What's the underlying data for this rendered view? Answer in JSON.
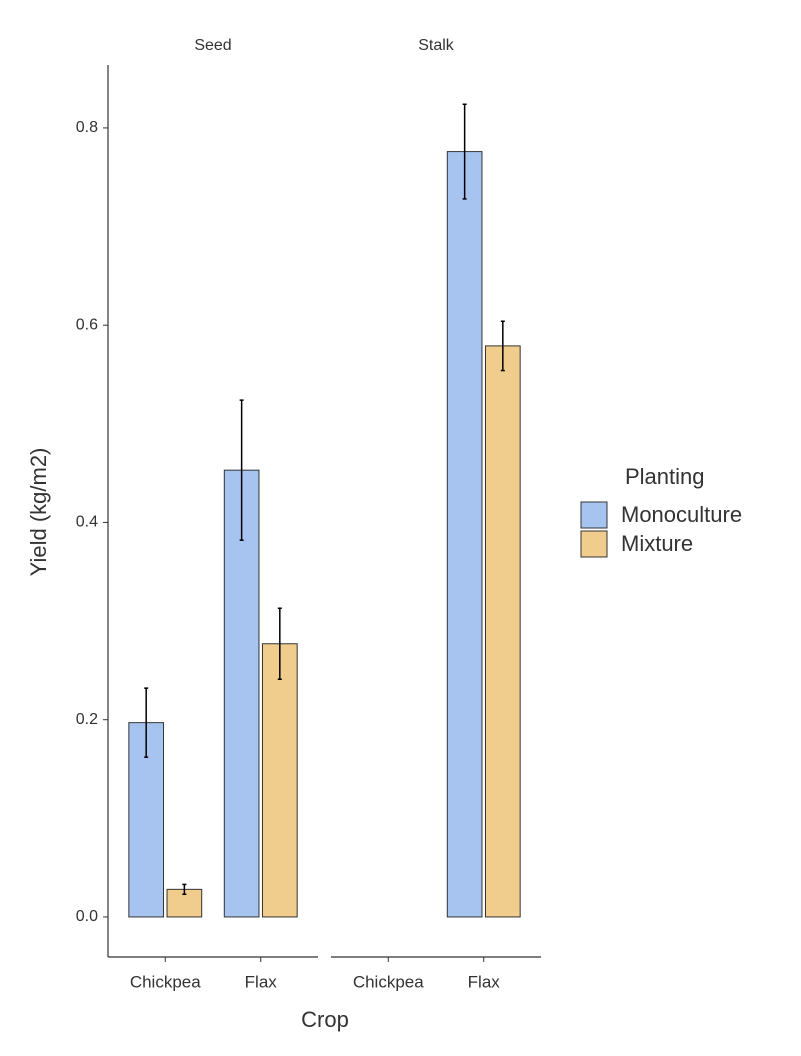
{
  "chart_data": {
    "type": "bar",
    "x_label": "Crop",
    "y_label": "Yield (kg/m2)",
    "legend": {
      "title": "Planting",
      "position": "right"
    },
    "series": [
      {
        "name": "Monoculture",
        "color": "#a7c4f1"
      },
      {
        "name": "Mixture",
        "color": "#f0cd8c"
      }
    ],
    "ylim": [
      -0.0406,
      0.8638
    ],
    "yticks": [
      {
        "value": 0,
        "label": "0.0"
      },
      0.2,
      0.4,
      0.6,
      0.8
    ],
    "grid": false,
    "panels": [
      {
        "title": "Seed",
        "categories": [
          "Chickpea",
          "Flax"
        ],
        "series": [
          {
            "values": [
              0.197,
              0.453
            ],
            "errors": [
              0.035,
              0.071
            ]
          },
          {
            "values": [
              0.028,
              0.277
            ],
            "errors": [
              0.005,
              0.036
            ]
          }
        ]
      },
      {
        "title": "Stalk",
        "categories": [
          "Chickpea",
          "Flax"
        ],
        "series": [
          {
            "values": [
              null,
              0.776
            ],
            "errors": [
              null,
              0.048
            ]
          },
          {
            "values": [
              null,
              0.579
            ],
            "errors": [
              null,
              0.025
            ]
          }
        ]
      }
    ]
  }
}
